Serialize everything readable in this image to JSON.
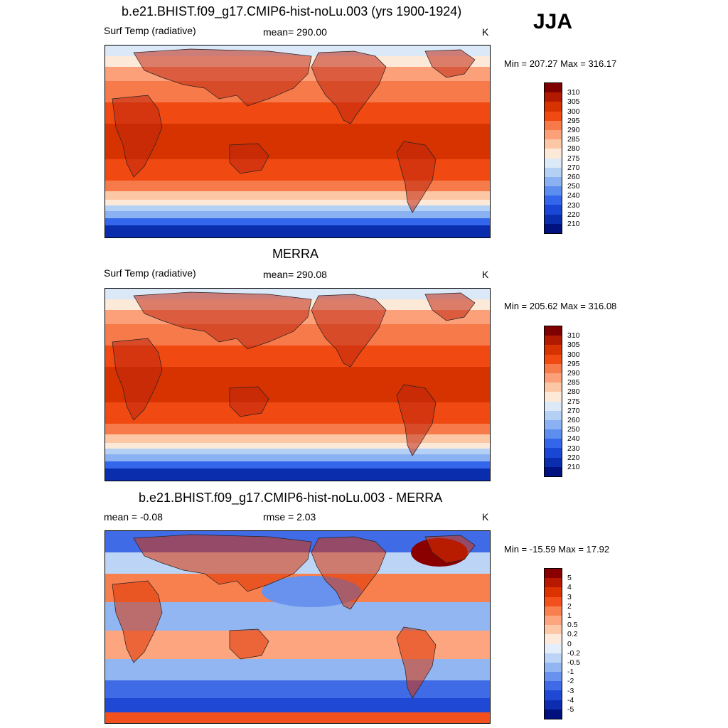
{
  "season": "JJA",
  "units": "K",
  "panels": [
    {
      "title": "b.e21.BHIST.f09_g17.CMIP6-hist-noLu.003 (yrs 1900-1924)",
      "left_label": "Surf Temp (radiative)",
      "center_label": "mean= 290.00",
      "units": "K",
      "minmax": "Min = 207.27 Max = 316.17",
      "colorbar": {
        "labels": [
          "310",
          "305",
          "300",
          "295",
          "290",
          "285",
          "280",
          "275",
          "270",
          "260",
          "250",
          "240",
          "230",
          "220",
          "210"
        ],
        "colors": [
          "#7f0000",
          "#b21a00",
          "#d63300",
          "#f04a12",
          "#f77a4a",
          "#fca07a",
          "#fcc7a4",
          "#fde9d8",
          "#dceaf8",
          "#b4d0f5",
          "#8ab2f2",
          "#5c8ef0",
          "#3366ea",
          "#1a46d6",
          "#0a2dae",
          "#00127f"
        ]
      },
      "map": "model"
    },
    {
      "title": "MERRA",
      "left_label": "Surf Temp (radiative)",
      "center_label": "mean= 290.08",
      "units": "K",
      "minmax": "Min = 205.62 Max = 316.08",
      "colorbar": {
        "labels": [
          "310",
          "305",
          "300",
          "295",
          "290",
          "285",
          "280",
          "275",
          "270",
          "260",
          "250",
          "240",
          "230",
          "220",
          "210"
        ],
        "colors": [
          "#7f0000",
          "#b21a00",
          "#d63300",
          "#f04a12",
          "#f77a4a",
          "#fca07a",
          "#fcc7a4",
          "#fde9d8",
          "#dceaf8",
          "#b4d0f5",
          "#8ab2f2",
          "#5c8ef0",
          "#3366ea",
          "#1a46d6",
          "#0a2dae",
          "#00127f"
        ]
      },
      "map": "obs"
    },
    {
      "title": "b.e21.BHIST.f09_g17.CMIP6-hist-noLu.003 - MERRA",
      "left_label": "mean =  -0.08",
      "center_label": "rmse =   2.03",
      "units": "K",
      "minmax": "Min = -15.59 Max =  17.92",
      "colorbar": {
        "labels": [
          "5",
          "4",
          "3",
          "2",
          "1",
          "0.5",
          "0.2",
          "0",
          "-0.2",
          "-0.5",
          "-1",
          "-2",
          "-3",
          "-4",
          "-5"
        ],
        "colors": [
          "#8a0000",
          "#b81800",
          "#dc3200",
          "#f2501c",
          "#f8804f",
          "#fca57e",
          "#fdc8a8",
          "#fdeadc",
          "#e4eefa",
          "#bcd5f6",
          "#92b6f2",
          "#6892ee",
          "#3f6ce6",
          "#1f48d4",
          "#0c2db0",
          "#00107c"
        ]
      },
      "map": "diff"
    }
  ]
}
